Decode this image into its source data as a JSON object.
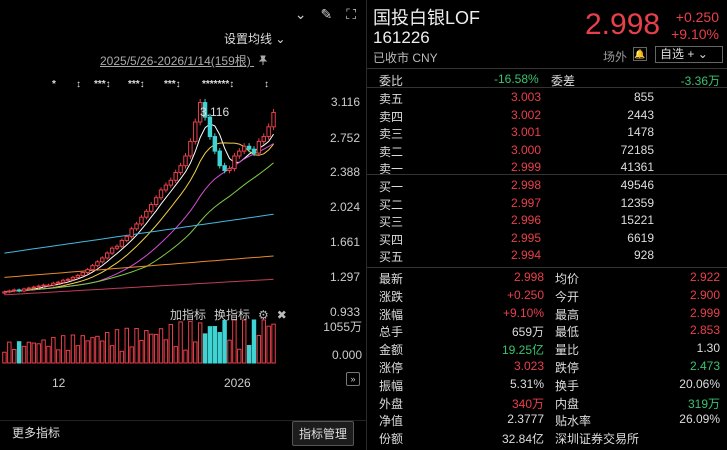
{
  "toolbar": {
    "icons": [
      "chevron-down-icon",
      "edit-icon",
      "fullscreen-icon"
    ],
    "chevron": "⌄",
    "edit": "✎",
    "fullscreen": "⛶"
  },
  "chart": {
    "ma_setting_label": "设置均线",
    "ma_setting_arrow": "⌄",
    "date_range": "2025/5/26-2026/1/14(159根)",
    "pin": "📌",
    "signals": [
      "*",
      "↕",
      "***↕",
      "***↕",
      "***↕",
      "*******↕",
      "↕"
    ],
    "peak_label": "3.116",
    "price_axis": [
      "3.116",
      "2.752",
      "2.388",
      "2.024",
      "1.661",
      "1.297",
      "0.933"
    ],
    "add_indicator": "加指标",
    "switch_indicator": "换指标",
    "volume_axis": [
      "1055万",
      "0.000"
    ],
    "x_labels": [
      "12",
      "2026"
    ],
    "expand": "»",
    "more_indicators": "更多指标",
    "indicator_manager": "指标管理"
  },
  "chart_data": {
    "type": "candlestick",
    "ylim": [
      0.933,
      3.116
    ],
    "peak": 3.116,
    "closes": [
      1.15,
      1.16,
      1.17,
      1.16,
      1.18,
      1.19,
      1.2,
      1.21,
      1.22,
      1.22,
      1.24,
      1.25,
      1.27,
      1.28,
      1.3,
      1.32,
      1.35,
      1.38,
      1.42,
      1.46,
      1.5,
      1.55,
      1.6,
      1.62,
      1.68,
      1.72,
      1.8,
      1.85,
      1.92,
      1.98,
      2.05,
      2.12,
      2.2,
      2.25,
      2.3,
      2.38,
      2.45,
      2.55,
      2.7,
      2.9,
      3.1,
      2.95,
      2.75,
      2.6,
      2.45,
      2.4,
      2.42,
      2.55,
      2.6,
      2.65,
      2.62,
      2.58,
      2.7,
      2.75,
      2.85,
      2.998
    ],
    "volume_max": "1055万"
  },
  "stock": {
    "name": "国投白银LOF",
    "code": "161226",
    "status": "已收市 CNY",
    "price": "2.998",
    "change": "+0.250",
    "change_pct": "+9.10%",
    "offmarket": "场外",
    "bell": "🔔",
    "watchlist": "自选 +",
    "watchlist_arrow": "⌄"
  },
  "ratio": {
    "weibi_label": "委比",
    "weibi": "-16.58%",
    "weicha_label": "委差",
    "weicha": "-3.36万"
  },
  "asks": [
    {
      "label": "卖五",
      "price": "3.003",
      "vol": "855"
    },
    {
      "label": "卖四",
      "price": "3.002",
      "vol": "2443"
    },
    {
      "label": "卖三",
      "price": "3.001",
      "vol": "1478"
    },
    {
      "label": "卖二",
      "price": "3.000",
      "vol": "72185"
    },
    {
      "label": "卖一",
      "price": "2.999",
      "vol": "41361"
    }
  ],
  "bids": [
    {
      "label": "买一",
      "price": "2.998",
      "vol": "49546"
    },
    {
      "label": "买二",
      "price": "2.997",
      "vol": "12359"
    },
    {
      "label": "买三",
      "price": "2.996",
      "vol": "15221"
    },
    {
      "label": "买四",
      "price": "2.995",
      "vol": "6619"
    },
    {
      "label": "买五",
      "price": "2.994",
      "vol": "928"
    }
  ],
  "stats": [
    {
      "l1": "最新",
      "v1": "2.998",
      "c1": "up",
      "l2": "均价",
      "v2": "2.922",
      "c2": "up"
    },
    {
      "l1": "涨跌",
      "v1": "+0.250",
      "c1": "up",
      "l2": "今开",
      "v2": "2.900",
      "c2": "up"
    },
    {
      "l1": "涨幅",
      "v1": "+9.10%",
      "c1": "up",
      "l2": "最高",
      "v2": "2.999",
      "c2": "up"
    },
    {
      "l1": "总手",
      "v1": "659万",
      "c1": "wh",
      "l2": "最低",
      "v2": "2.853",
      "c2": "up"
    },
    {
      "l1": "金额",
      "v1": "19.25亿",
      "c1": "down",
      "l2": "量比",
      "v2": "1.30",
      "c2": "wh"
    },
    {
      "l1": "涨停",
      "v1": "3.023",
      "c1": "up",
      "l2": "跌停",
      "v2": "2.473",
      "c2": "gr"
    },
    {
      "l1": "振幅",
      "v1": "5.31%",
      "c1": "wh",
      "l2": "换手",
      "v2": "20.06%",
      "c2": "wh"
    },
    {
      "l1": "外盘",
      "v1": "340万",
      "c1": "up",
      "l2": "内盘",
      "v2": "319万",
      "c2": "gr"
    },
    {
      "l1": "净值",
      "v1": "2.3777",
      "c1": "wh",
      "l2": "贴水率",
      "v2": "26.09%",
      "c2": "wh"
    },
    {
      "l1": "份额",
      "v1": "32.84亿",
      "c1": "wh",
      "l2": "深圳证券交易所",
      "v2": "",
      "c2": "wh"
    }
  ],
  "colors": {
    "up": "#e8404a",
    "down": "#39c36e",
    "bg": "#000000"
  }
}
